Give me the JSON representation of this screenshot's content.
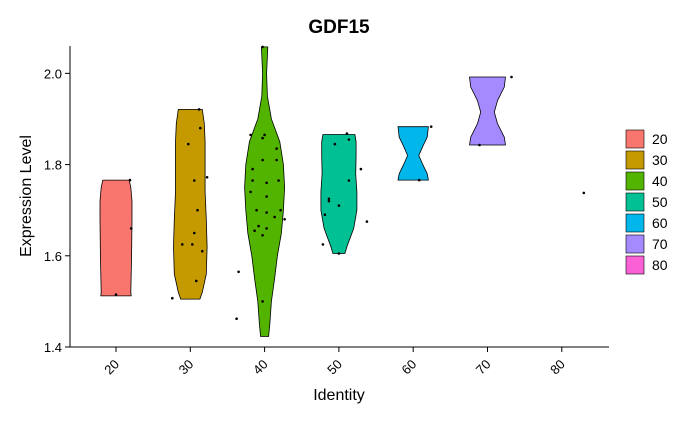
{
  "chart_data": {
    "type": "violin",
    "title": "GDF15",
    "xlabel": "Identity",
    "ylabel": "Expression Level",
    "categories": [
      "20",
      "30",
      "40",
      "50",
      "60",
      "70",
      "80"
    ],
    "ylim": [
      1.4,
      2.06
    ],
    "y_ticks": [
      "1.4",
      "1.6",
      "1.8",
      "2.0"
    ],
    "legend_position": "right",
    "grid": false,
    "series": [
      {
        "name": "20",
        "color": "#F8766D",
        "range": [
          1.512,
          1.766
        ],
        "profile": [
          [
            1.512,
            0.38
          ],
          [
            1.52,
            0.37
          ],
          [
            1.6,
            0.39
          ],
          [
            1.68,
            0.4
          ],
          [
            1.72,
            0.4
          ],
          [
            1.75,
            0.37
          ],
          [
            1.766,
            0.33
          ]
        ],
        "points": [
          [
            0.35,
            1.766
          ],
          [
            0.38,
            1.66
          ],
          [
            0.0,
            1.515
          ]
        ]
      },
      {
        "name": "30",
        "color": "#C49A00",
        "range": [
          1.505,
          1.921
        ],
        "profile": [
          [
            1.505,
            0.24
          ],
          [
            1.52,
            0.3
          ],
          [
            1.56,
            0.4
          ],
          [
            1.62,
            0.42
          ],
          [
            1.68,
            0.4
          ],
          [
            1.74,
            0.37
          ],
          [
            1.8,
            0.37
          ],
          [
            1.85,
            0.37
          ],
          [
            1.89,
            0.35
          ],
          [
            1.921,
            0.3
          ]
        ],
        "points": [
          [
            0.22,
            1.921
          ],
          [
            0.25,
            1.88
          ],
          [
            -0.05,
            1.845
          ],
          [
            0.1,
            1.765
          ],
          [
            0.42,
            1.772
          ],
          [
            0.18,
            1.7
          ],
          [
            0.1,
            1.65
          ],
          [
            -0.2,
            1.625
          ],
          [
            0.05,
            1.625
          ],
          [
            0.3,
            1.61
          ],
          [
            0.15,
            1.545
          ],
          [
            -0.45,
            1.507
          ]
        ]
      },
      {
        "name": "40",
        "color": "#53B400",
        "range": [
          1.423,
          2.058
        ],
        "profile": [
          [
            1.423,
            0.1
          ],
          [
            1.45,
            0.13
          ],
          [
            1.5,
            0.17
          ],
          [
            1.55,
            0.25
          ],
          [
            1.6,
            0.32
          ],
          [
            1.65,
            0.42
          ],
          [
            1.7,
            0.47
          ],
          [
            1.75,
            0.5
          ],
          [
            1.8,
            0.47
          ],
          [
            1.85,
            0.38
          ],
          [
            1.9,
            0.17
          ],
          [
            1.95,
            0.07
          ],
          [
            2.0,
            0.05
          ],
          [
            2.058,
            0.08
          ]
        ],
        "points": [
          [
            -0.05,
            2.058
          ],
          [
            0.0,
            1.865
          ],
          [
            -0.05,
            1.858
          ],
          [
            -0.35,
            1.865
          ],
          [
            0.3,
            1.835
          ],
          [
            -0.05,
            1.81
          ],
          [
            0.3,
            1.81
          ],
          [
            -0.3,
            1.79
          ],
          [
            -0.3,
            1.765
          ],
          [
            0.05,
            1.76
          ],
          [
            0.35,
            1.765
          ],
          [
            -0.35,
            1.74
          ],
          [
            -0.2,
            1.7
          ],
          [
            0.05,
            1.73
          ],
          [
            0.4,
            1.7
          ],
          [
            0.05,
            1.695
          ],
          [
            0.25,
            1.685
          ],
          [
            0.5,
            1.68
          ],
          [
            -0.15,
            1.665
          ],
          [
            -0.25,
            1.655
          ],
          [
            0.05,
            1.66
          ],
          [
            -0.05,
            1.645
          ],
          [
            -0.65,
            1.565
          ],
          [
            -0.05,
            1.5
          ],
          [
            -0.7,
            1.462
          ]
        ]
      },
      {
        "name": "50",
        "color": "#00C094",
        "range": [
          1.605,
          1.866
        ],
        "profile": [
          [
            1.605,
            0.15
          ],
          [
            1.62,
            0.2
          ],
          [
            1.66,
            0.37
          ],
          [
            1.7,
            0.45
          ],
          [
            1.74,
            0.45
          ],
          [
            1.78,
            0.42
          ],
          [
            1.82,
            0.43
          ],
          [
            1.85,
            0.43
          ],
          [
            1.866,
            0.4
          ]
        ],
        "points": [
          [
            0.2,
            1.868
          ],
          [
            0.25,
            1.855
          ],
          [
            -0.1,
            1.845
          ],
          [
            0.55,
            1.79
          ],
          [
            0.25,
            1.765
          ],
          [
            -0.25,
            1.725
          ],
          [
            -0.25,
            1.72
          ],
          [
            0.0,
            1.71
          ],
          [
            -0.35,
            1.69
          ],
          [
            0.7,
            1.675
          ],
          [
            -0.4,
            1.625
          ],
          [
            0.0,
            1.605
          ]
        ]
      },
      {
        "name": "60",
        "color": "#00B6EB",
        "range": [
          1.766,
          1.883
        ],
        "profile": [
          [
            1.766,
            0.38
          ],
          [
            1.78,
            0.35
          ],
          [
            1.8,
            0.24
          ],
          [
            1.82,
            0.14
          ],
          [
            1.84,
            0.24
          ],
          [
            1.86,
            0.35
          ],
          [
            1.883,
            0.38
          ]
        ],
        "points": [
          [
            0.45,
            1.883
          ],
          [
            0.15,
            1.766
          ]
        ]
      },
      {
        "name": "70",
        "color": "#A58AFF",
        "range": [
          1.843,
          1.992
        ],
        "profile": [
          [
            1.843,
            0.45
          ],
          [
            1.86,
            0.42
          ],
          [
            1.89,
            0.25
          ],
          [
            1.915,
            0.17
          ],
          [
            1.94,
            0.25
          ],
          [
            1.97,
            0.42
          ],
          [
            1.992,
            0.45
          ]
        ],
        "points": [
          [
            0.6,
            1.992
          ],
          [
            -0.2,
            1.843
          ]
        ]
      },
      {
        "name": "80",
        "color": "#FB61D7",
        "range": [
          1.738,
          1.738
        ],
        "profile": [],
        "points": [
          [
            0.55,
            1.738
          ]
        ]
      }
    ]
  }
}
